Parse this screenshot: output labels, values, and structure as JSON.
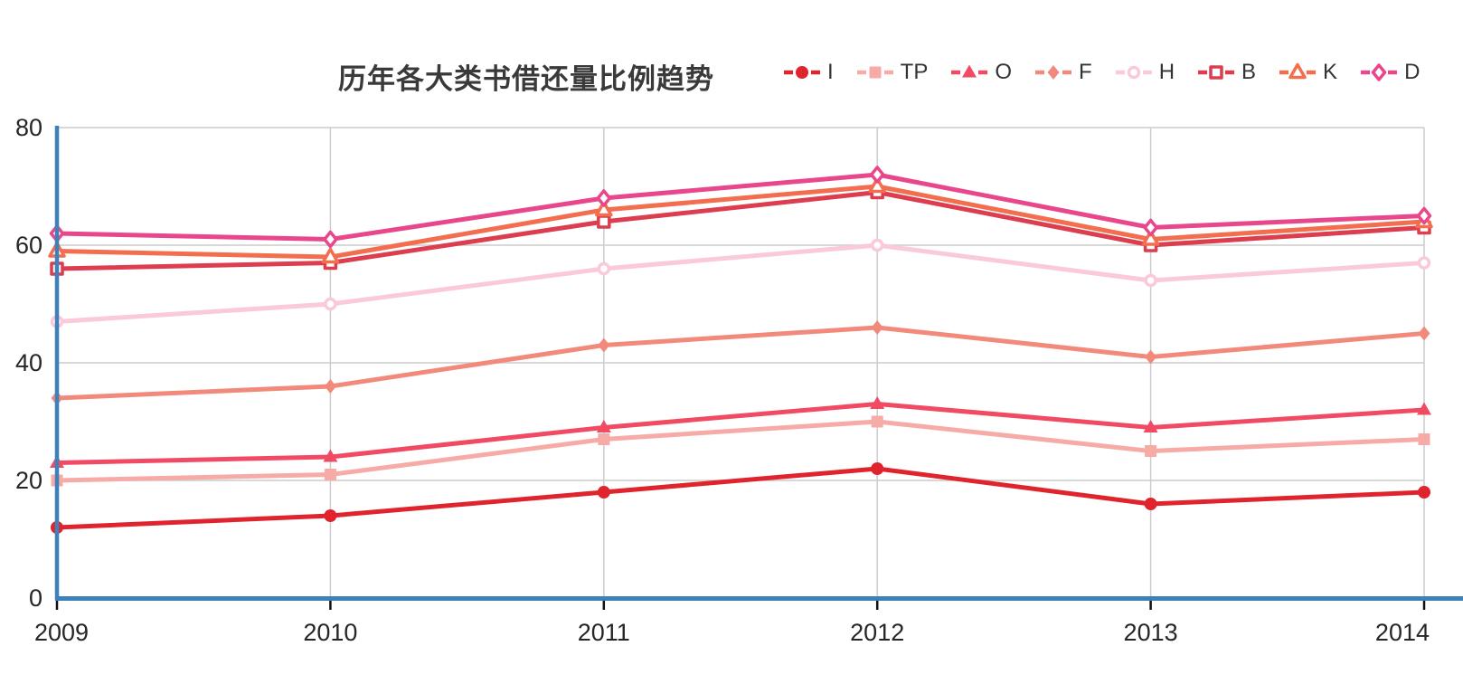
{
  "title": "历年各大类书借还量比例趋势",
  "chart_data": {
    "type": "line",
    "title": "历年各大类书借还量比例趋势",
    "categories": [
      "2009",
      "2010",
      "2011",
      "2012",
      "2013",
      "2014"
    ],
    "series": [
      {
        "name": "I",
        "values": [
          12,
          14,
          18,
          22,
          16,
          18
        ],
        "color": "#e0242e",
        "marker": "circle",
        "filled": true
      },
      {
        "name": "TP",
        "values": [
          20,
          21,
          27,
          30,
          25,
          27
        ],
        "color": "#f6aba6",
        "marker": "square",
        "filled": true
      },
      {
        "name": "O",
        "values": [
          23,
          24,
          29,
          33,
          29,
          32
        ],
        "color": "#f14b64",
        "marker": "triangle",
        "filled": true
      },
      {
        "name": "F",
        "values": [
          34,
          36,
          43,
          46,
          41,
          45
        ],
        "color": "#f28a7c",
        "marker": "diamond",
        "filled": true
      },
      {
        "name": "H",
        "values": [
          47,
          50,
          56,
          60,
          54,
          57
        ],
        "color": "#fac9da",
        "marker": "circle",
        "filled": false
      },
      {
        "name": "B",
        "values": [
          56,
          57,
          64,
          69,
          60,
          63
        ],
        "color": "#dc3d4f",
        "marker": "square",
        "filled": false
      },
      {
        "name": "K",
        "values": [
          59,
          58,
          66,
          70,
          61,
          64
        ],
        "color": "#f26e4e",
        "marker": "triangle",
        "filled": false
      },
      {
        "name": "D",
        "values": [
          62,
          61,
          68,
          72,
          63,
          65
        ],
        "color": "#e8488b",
        "marker": "diamond",
        "filled": false
      }
    ],
    "xlabel": "",
    "ylabel": "",
    "ylim": [
      0,
      80
    ],
    "y_ticks": [
      0,
      20,
      40,
      60,
      80
    ],
    "grid": true,
    "legend_position": "top-right",
    "axis_color": "#3e81ba",
    "grid_color": "#cccccc",
    "tick_color": "#111111",
    "label_color": "#262626",
    "title_color": "#3a3a3a"
  }
}
